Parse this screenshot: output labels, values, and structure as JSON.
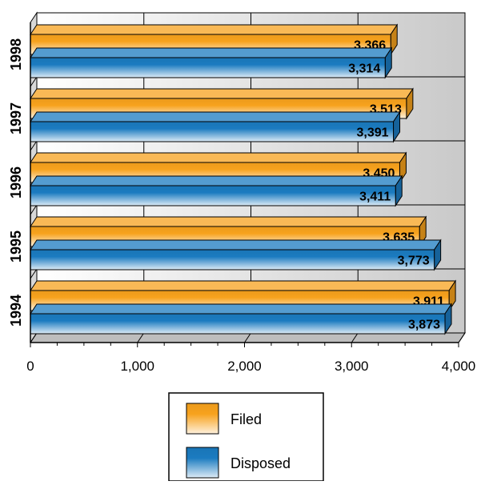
{
  "chart_data": {
    "type": "bar",
    "orientation": "horizontal",
    "style": "3d",
    "categories": [
      "1998",
      "1997",
      "1996",
      "1995",
      "1994"
    ],
    "series": [
      {
        "name": "Filed",
        "values": [
          3366,
          3513,
          3450,
          3635,
          3911
        ],
        "color": "#f7a21d"
      },
      {
        "name": "Disposed",
        "values": [
          3314,
          3391,
          3411,
          3773,
          3873
        ],
        "color": "#1b7bc0"
      }
    ],
    "data_labels": {
      "Filed": [
        "3,366",
        "3,513",
        "3,450",
        "3,635",
        "3,911"
      ],
      "Disposed": [
        "3,314",
        "3,391",
        "3,411",
        "3,773",
        "3,873"
      ]
    },
    "xlim": [
      0,
      4000
    ],
    "x_ticks": [
      0,
      1000,
      2000,
      3000,
      4000
    ],
    "x_tick_labels": [
      "0",
      "1,000",
      "2,000",
      "3,000",
      "4,000"
    ],
    "grid": true,
    "legend_position": "bottom-center",
    "title": "",
    "xlabel": "",
    "ylabel": ""
  }
}
